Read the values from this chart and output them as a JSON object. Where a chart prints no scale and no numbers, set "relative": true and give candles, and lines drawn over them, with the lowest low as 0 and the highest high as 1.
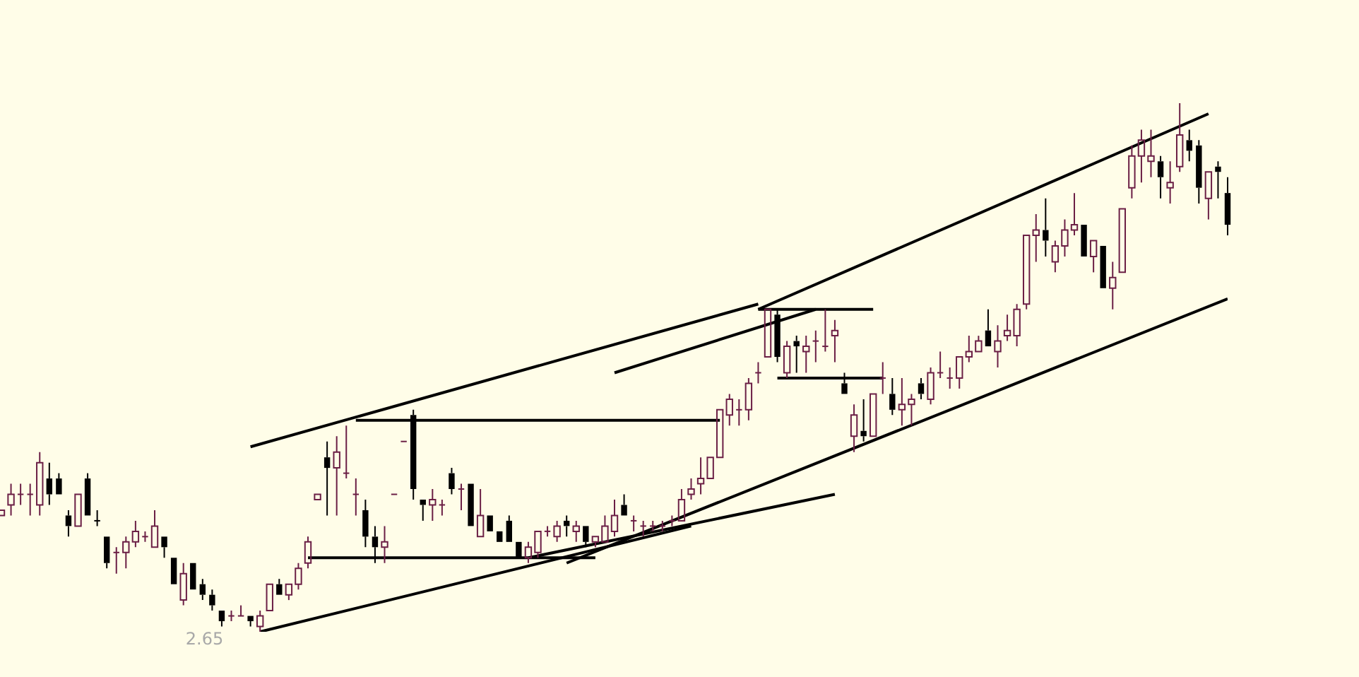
{
  "chart_data": {
    "type": "candlestick",
    "relative": true,
    "categories": [
      null,
      null,
      null,
      null,
      null,
      null,
      null,
      null,
      null,
      null,
      null,
      null,
      null,
      null,
      null,
      null,
      null,
      null,
      null,
      null,
      null,
      null,
      null,
      null,
      null,
      null,
      null,
      null,
      null,
      null,
      null,
      null,
      null,
      null,
      null,
      null,
      null,
      null,
      null,
      null,
      null,
      null,
      null,
      null,
      null,
      null,
      null,
      null,
      null,
      null,
      null,
      null,
      null,
      null,
      null,
      null,
      null,
      null,
      null,
      null,
      null,
      null,
      null,
      null,
      null,
      null,
      null,
      null,
      null,
      null,
      null,
      null,
      null,
      null,
      null,
      null,
      null,
      null,
      null,
      null,
      null,
      null,
      null,
      null,
      null,
      null,
      null,
      null,
      null,
      null,
      null,
      null,
      null,
      null,
      null,
      null,
      null,
      null,
      null,
      null,
      null,
      null,
      null,
      null,
      null,
      null,
      null,
      null,
      null,
      null,
      null,
      null,
      null,
      null,
      null,
      null,
      null,
      null,
      null,
      null,
      null,
      null,
      null,
      null,
      null,
      null,
      null,
      null,
      null
    ],
    "annotations": [
      "2.65"
    ],
    "series": [
      {
        "type": "candlestick",
        "colors": [
          "#6b1f45",
          "#6b1f45",
          "#6b1f45",
          "#6b1f45",
          "#6b1f45",
          "#000000",
          "#000000",
          "#000000",
          "#6b1f45",
          "#000000",
          "#000000",
          "#000000",
          "#6b1f45",
          "#6b1f45",
          "#6b1f45",
          "#6b1f45",
          "#6b1f45",
          "#000000",
          "#000000",
          "#6b1f45",
          "#000000",
          "#000000",
          "#000000",
          "#000000",
          "#6b1f45",
          "#6b1f45",
          "#000000",
          "#6b1f45",
          "#6b1f45",
          "#000000",
          "#6b1f45",
          "#6b1f45",
          "#6b1f45",
          "#6b1f45",
          "#000000",
          "#6b1f45",
          "#6b1f45",
          "#6b1f45",
          "#000000",
          "#000000",
          "#6b1f45",
          "#6b1f45",
          "#6b1f45",
          "#000000",
          "#000000",
          "#6b1f45",
          "#6b1f45",
          "#000000",
          "#6b1f45",
          "#000000",
          "#6b1f45",
          "#000000",
          "#000000",
          "#000000",
          "#000000",
          "#6b1f45",
          "#6b1f45",
          "#6b1f45",
          "#6b1f45",
          "#000000",
          "#6b1f45",
          "#000000",
          "#6b1f45",
          "#6b1f45",
          "#6b1f45",
          "#000000",
          "#6b1f45",
          "#6b1f45",
          "#6b1f45",
          "#6b1f45",
          "#6b1f45",
          "#6b1f45",
          "#6b1f45",
          "#6b1f45",
          "#6b1f45",
          "#6b1f45",
          "#6b1f45",
          "#6b1f45",
          "#6b1f45",
          "#6b1f45",
          "#6b1f45",
          "#000000",
          "#6b1f45",
          "#000000",
          "#6b1f45",
          "#6b1f45",
          "#6b1f45",
          "#6b1f45",
          "#000000",
          "#6b1f45",
          "#000000",
          "#6b1f45",
          "#6b1f45",
          "#000000",
          "#6b1f45",
          "#6b1f45",
          "#000000",
          "#6b1f45",
          "#6b1f45",
          "#6b1f45",
          "#6b1f45",
          "#6b1f45",
          "#6b1f45",
          "#000000",
          "#6b1f45",
          "#6b1f45",
          "#6b1f45",
          "#6b1f45",
          "#6b1f45",
          "#000000",
          "#6b1f45",
          "#6b1f45",
          "#6b1f45",
          "#000000",
          "#6b1f45",
          "#000000",
          "#6b1f45",
          "#6b1f45",
          "#6b1f45",
          "#6b1f45",
          "#6b1f45",
          "#000000",
          "#6b1f45",
          "#6b1f45",
          "#000000",
          "#000000",
          "#6b1f45",
          "#000000",
          "#000000"
        ],
        "ohlc": [
          [
            0.22,
            0.23,
            0.22,
            0.23
          ],
          [
            0.24,
            0.28,
            0.22,
            0.26
          ],
          [
            0.26,
            0.28,
            0.24,
            0.26
          ],
          [
            0.26,
            0.28,
            0.22,
            0.26
          ],
          [
            0.24,
            0.34,
            0.22,
            0.32
          ],
          [
            0.29,
            0.32,
            0.24,
            0.26
          ],
          [
            0.29,
            0.3,
            0.26,
            0.26
          ],
          [
            0.22,
            0.23,
            0.18,
            0.2
          ],
          [
            0.2,
            0.26,
            0.2,
            0.26
          ],
          [
            0.29,
            0.3,
            0.22,
            0.22
          ],
          [
            0.21,
            0.23,
            0.2,
            0.21
          ],
          [
            0.18,
            0.18,
            0.12,
            0.13
          ],
          [
            0.15,
            0.16,
            0.11,
            0.15
          ],
          [
            0.15,
            0.18,
            0.12,
            0.17
          ],
          [
            0.17,
            0.21,
            0.16,
            0.19
          ],
          [
            0.18,
            0.19,
            0.17,
            0.18
          ],
          [
            0.16,
            0.23,
            0.16,
            0.2
          ],
          [
            0.18,
            0.18,
            0.14,
            0.16
          ],
          [
            0.14,
            0.14,
            0.09,
            0.09
          ],
          [
            0.06,
            0.13,
            0.05,
            0.11
          ],
          [
            0.13,
            0.13,
            0.08,
            0.08
          ],
          [
            0.09,
            0.1,
            0.06,
            0.07
          ],
          [
            0.07,
            0.08,
            0.04,
            0.05
          ],
          [
            0.04,
            0.04,
            0.01,
            0.02
          ],
          [
            0.03,
            0.04,
            0.02,
            0.03
          ],
          [
            0.03,
            0.05,
            0.03,
            0.03
          ],
          [
            0.03,
            0.03,
            0.01,
            0.02
          ],
          [
            0.01,
            0.04,
            0,
            0.03
          ],
          [
            0.04,
            0.09,
            0.04,
            0.09
          ],
          [
            0.09,
            0.1,
            0.07,
            0.07
          ],
          [
            0.07,
            0.09,
            0.06,
            0.09
          ],
          [
            0.09,
            0.13,
            0.08,
            0.12
          ],
          [
            0.13,
            0.18,
            0.12,
            0.17
          ],
          [
            0.25,
            0.26,
            0.25,
            0.26
          ],
          [
            0.33,
            0.36,
            0.22,
            0.31
          ],
          [
            0.31,
            0.37,
            0.22,
            0.34
          ],
          [
            0.3,
            0.39,
            0.29,
            0.3
          ],
          [
            0.26,
            0.29,
            0.22,
            0.26
          ],
          [
            0.23,
            0.25,
            0.16,
            0.18
          ],
          [
            0.18,
            0.2,
            0.13,
            0.16
          ],
          [
            0.16,
            0.2,
            0.13,
            0.17
          ],
          [
            0.26,
            0.26,
            0.26,
            0.26
          ],
          [
            0.36,
            0.36,
            0.36,
            0.36
          ],
          [
            0.41,
            0.42,
            0.25,
            0.27
          ],
          [
            0.25,
            0.25,
            0.21,
            0.24
          ],
          [
            0.24,
            0.27,
            0.21,
            0.25
          ],
          [
            0.24,
            0.25,
            0.22,
            0.24
          ],
          [
            0.3,
            0.31,
            0.26,
            0.27
          ],
          [
            0.27,
            0.28,
            0.23,
            0.27
          ],
          [
            0.28,
            0.28,
            0.2,
            0.2
          ],
          [
            0.18,
            0.27,
            0.18,
            0.22
          ],
          [
            0.22,
            0.22,
            0.19,
            0.19
          ],
          [
            0.19,
            0.19,
            0.17,
            0.17
          ],
          [
            0.21,
            0.22,
            0.17,
            0.17
          ],
          [
            0.17,
            0.17,
            0.14,
            0.14
          ],
          [
            0.14,
            0.17,
            0.13,
            0.16
          ],
          [
            0.15,
            0.19,
            0.14,
            0.19
          ],
          [
            0.19,
            0.2,
            0.18,
            0.19
          ],
          [
            0.18,
            0.21,
            0.17,
            0.2
          ],
          [
            0.21,
            0.22,
            0.18,
            0.2
          ],
          [
            0.19,
            0.21,
            0.17,
            0.2
          ],
          [
            0.2,
            0.2,
            0.16,
            0.17
          ],
          [
            0.17,
            0.18,
            0.16,
            0.18
          ],
          [
            0.17,
            0.22,
            0.17,
            0.2
          ],
          [
            0.19,
            0.25,
            0.18,
            0.22
          ],
          [
            0.24,
            0.26,
            0.22,
            0.22
          ],
          [
            0.21,
            0.22,
            0.19,
            0.21
          ],
          [
            0.2,
            0.21,
            0.18,
            0.2
          ],
          [
            0.2,
            0.21,
            0.19,
            0.2
          ],
          [
            0.2,
            0.21,
            0.19,
            0.2
          ],
          [
            0.21,
            0.22,
            0.2,
            0.21
          ],
          [
            0.21,
            0.27,
            0.21,
            0.25
          ],
          [
            0.26,
            0.29,
            0.25,
            0.27
          ],
          [
            0.28,
            0.33,
            0.26,
            0.29
          ],
          [
            0.29,
            0.33,
            0.29,
            0.33
          ],
          [
            0.33,
            0.42,
            0.33,
            0.42
          ],
          [
            0.41,
            0.45,
            0.39,
            0.44
          ],
          [
            0.42,
            0.44,
            0.39,
            0.42
          ],
          [
            0.42,
            0.48,
            0.4,
            0.47
          ],
          [
            0.49,
            0.51,
            0.47,
            0.49
          ],
          [
            0.52,
            0.61,
            0.52,
            0.61
          ],
          [
            0.6,
            0.61,
            0.51,
            0.52
          ],
          [
            0.49,
            0.55,
            0.48,
            0.54
          ],
          [
            0.55,
            0.56,
            0.49,
            0.54
          ],
          [
            0.53,
            0.56,
            0.49,
            0.54
          ],
          [
            0.55,
            0.57,
            0.51,
            0.55
          ],
          [
            0.54,
            0.61,
            0.53,
            0.54
          ],
          [
            0.56,
            0.59,
            0.51,
            0.57
          ],
          [
            0.47,
            0.49,
            0.45,
            0.45
          ],
          [
            0.37,
            0.43,
            0.34,
            0.41
          ],
          [
            0.38,
            0.44,
            0.36,
            0.37
          ],
          [
            0.37,
            0.45,
            0.37,
            0.45
          ],
          [
            0.48,
            0.51,
            0.45,
            0.48
          ],
          [
            0.45,
            0.48,
            0.41,
            0.42
          ],
          [
            0.42,
            0.48,
            0.39,
            0.43
          ],
          [
            0.43,
            0.45,
            0.39,
            0.44
          ],
          [
            0.47,
            0.48,
            0.44,
            0.45
          ],
          [
            0.44,
            0.5,
            0.43,
            0.49
          ],
          [
            0.49,
            0.53,
            0.48,
            0.49
          ],
          [
            0.48,
            0.5,
            0.46,
            0.48
          ],
          [
            0.48,
            0.52,
            0.46,
            0.52
          ],
          [
            0.52,
            0.56,
            0.51,
            0.53
          ],
          [
            0.53,
            0.56,
            0.53,
            0.55
          ],
          [
            0.57,
            0.61,
            0.54,
            0.54
          ],
          [
            0.53,
            0.58,
            0.5,
            0.55
          ],
          [
            0.56,
            0.6,
            0.55,
            0.57
          ],
          [
            0.56,
            0.62,
            0.54,
            0.61
          ],
          [
            0.62,
            0.75,
            0.61,
            0.75
          ],
          [
            0.75,
            0.79,
            0.7,
            0.76
          ],
          [
            0.76,
            0.82,
            0.71,
            0.74
          ],
          [
            0.7,
            0.74,
            0.68,
            0.73
          ],
          [
            0.73,
            0.78,
            0.71,
            0.76
          ],
          [
            0.76,
            0.83,
            0.75,
            0.77
          ],
          [
            0.77,
            0.77,
            0.71,
            0.71
          ],
          [
            0.71,
            0.74,
            0.68,
            0.74
          ],
          [
            0.73,
            0.73,
            0.65,
            0.65
          ],
          [
            0.65,
            0.7,
            0.61,
            0.67
          ],
          [
            0.68,
            0.8,
            0.68,
            0.8
          ],
          [
            0.84,
            0.92,
            0.82,
            0.9
          ],
          [
            0.9,
            0.95,
            0.85,
            0.93
          ],
          [
            0.89,
            0.95,
            0.86,
            0.9
          ],
          [
            0.89,
            0.9,
            0.82,
            0.86
          ],
          [
            0.84,
            0.89,
            0.81,
            0.85
          ],
          [
            0.88,
            1,
            0.87,
            0.94
          ],
          [
            0.93,
            0.95,
            0.89,
            0.91
          ],
          [
            0.92,
            0.93,
            0.81,
            0.84
          ],
          [
            0.82,
            0.87,
            0.78,
            0.87
          ],
          [
            0.88,
            0.89,
            0.82,
            0.87
          ],
          [
            0.83,
            0.86,
            0.75,
            0.77
          ]
        ]
      },
      {
        "type": "line",
        "color": "#000000",
        "values": [
          null,
          null,
          null,
          null,
          null,
          null,
          null,
          null,
          null,
          null,
          null,
          null,
          null,
          null,
          null,
          null,
          null,
          null,
          null,
          null,
          null,
          null,
          null,
          null,
          null,
          null,
          0.35,
          null,
          null,
          null,
          null,
          null,
          null,
          null,
          null,
          null,
          null,
          null,
          null,
          null,
          null,
          null,
          null,
          null,
          null,
          null,
          null,
          null,
          null,
          null,
          null,
          null,
          null,
          null,
          null,
          null,
          null,
          null,
          null,
          null,
          null,
          null,
          null,
          null,
          null,
          null,
          null,
          null,
          null,
          null,
          null,
          null,
          null,
          null,
          null,
          null,
          null,
          null,
          null,
          0.62,
          null,
          null,
          null,
          null,
          null,
          null,
          null,
          null,
          null,
          null,
          null,
          null,
          null,
          null,
          null,
          null,
          null,
          null,
          null,
          null,
          null,
          null,
          null,
          null,
          null,
          null,
          null,
          null,
          null,
          null,
          null,
          null,
          null,
          null,
          null,
          null,
          null,
          null,
          null,
          null,
          null,
          null,
          null,
          null,
          null,
          null,
          null,
          null,
          null
        ]
      },
      {
        "type": "line",
        "color": "#000000",
        "values": [
          null,
          null,
          null,
          null,
          null,
          null,
          null,
          null,
          null,
          null,
          null,
          null,
          null,
          null,
          null,
          null,
          null,
          null,
          null,
          null,
          null,
          null,
          null,
          null,
          null,
          null,
          null,
          null,
          null,
          null,
          null,
          null,
          null,
          null,
          null,
          null,
          null,
          null,
          null,
          null,
          null,
          null,
          null,
          null,
          null,
          null,
          null,
          null,
          null,
          null,
          null,
          null,
          null,
          null,
          null,
          null,
          null,
          null,
          null,
          null,
          null,
          null,
          null,
          null,
          0.49,
          null,
          null,
          null,
          null,
          null,
          null,
          null,
          null,
          null,
          null,
          null,
          null,
          null,
          null,
          null,
          null,
          null,
          null,
          null,
          null,
          0.61,
          null,
          null,
          null,
          null,
          null,
          null,
          null,
          null,
          null,
          null,
          null,
          null,
          null,
          null,
          null,
          null,
          null,
          null,
          null,
          null,
          null,
          null,
          null,
          null,
          null,
          null,
          null,
          null,
          null,
          null,
          null,
          null,
          null,
          null,
          null,
          null,
          null,
          null,
          null,
          null,
          null,
          null,
          null
        ]
      },
      {
        "type": "line",
        "color": "#000000",
        "values": [
          null,
          null,
          null,
          null,
          null,
          null,
          null,
          null,
          null,
          null,
          null,
          null,
          null,
          null,
          null,
          null,
          null,
          null,
          null,
          null,
          null,
          null,
          null,
          null,
          null,
          null,
          null,
          null,
          null,
          null,
          null,
          null,
          null,
          null,
          null,
          null,
          null,
          null,
          null,
          null,
          null,
          null,
          null,
          null,
          null,
          null,
          null,
          null,
          null,
          null,
          null,
          null,
          null,
          null,
          null,
          null,
          null,
          null,
          null,
          null,
          null,
          null,
          null,
          null,
          null,
          null,
          null,
          null,
          null,
          null,
          null,
          null,
          null,
          null,
          null,
          null,
          null,
          null,
          null,
          0.61,
          null,
          null,
          null,
          null,
          null,
          null,
          null,
          null,
          null,
          null,
          null,
          null,
          null,
          null,
          null,
          null,
          null,
          null,
          null,
          null,
          null,
          null,
          null,
          null,
          null,
          null,
          null,
          null,
          null,
          null,
          null,
          null,
          null,
          null,
          null,
          null,
          null,
          null,
          null,
          null,
          null,
          null,
          null,
          null,
          null,
          null,
          0.98,
          null,
          null
        ]
      },
      {
        "type": "line",
        "color": "#000000",
        "values": [
          null,
          null,
          null,
          null,
          null,
          null,
          null,
          null,
          null,
          null,
          null,
          null,
          null,
          null,
          null,
          null,
          null,
          null,
          null,
          null,
          null,
          null,
          null,
          null,
          null,
          null,
          null,
          null,
          null,
          null,
          null,
          null,
          null,
          null,
          null,
          null,
          null,
          null,
          null,
          null,
          null,
          null,
          null,
          null,
          null,
          null,
          null,
          null,
          null,
          null,
          null,
          null,
          null,
          null,
          null,
          null,
          null,
          null,
          null,
          0.13,
          null,
          null,
          null,
          null,
          null,
          null,
          null,
          null,
          null,
          null,
          null,
          null,
          null,
          null,
          null,
          null,
          null,
          null,
          null,
          null,
          null,
          null,
          null,
          null,
          null,
          null,
          null,
          null,
          null,
          null,
          null,
          null,
          null,
          null,
          null,
          null,
          null,
          null,
          null,
          null,
          null,
          null,
          null,
          null,
          null,
          null,
          null,
          null,
          null,
          null,
          null,
          null,
          null,
          null,
          null,
          null,
          null,
          null,
          null,
          null,
          null,
          null,
          null,
          null,
          null,
          null,
          null,
          null,
          0.63
        ]
      },
      {
        "type": "line",
        "color": "#000000",
        "values": [
          null,
          null,
          null,
          null,
          null,
          null,
          null,
          null,
          null,
          null,
          null,
          null,
          null,
          null,
          null,
          null,
          null,
          null,
          null,
          null,
          null,
          null,
          null,
          null,
          null,
          null,
          null,
          0,
          null,
          null,
          null,
          null,
          null,
          null,
          null,
          null,
          null,
          null,
          null,
          null,
          null,
          null,
          null,
          null,
          null,
          null,
          null,
          null,
          null,
          null,
          null,
          null,
          null,
          null,
          null,
          null,
          null,
          null,
          null,
          null,
          null,
          null,
          null,
          null,
          null,
          null,
          null,
          null,
          null,
          null,
          null,
          null,
          0.2,
          null,
          null,
          null,
          null,
          null,
          null,
          null,
          null,
          null,
          null,
          null,
          null,
          null,
          null,
          null,
          null,
          null,
          null,
          null,
          null,
          null,
          null,
          null,
          null,
          null,
          null,
          null,
          null,
          null,
          null,
          null,
          null,
          null,
          null,
          null,
          null,
          null,
          null,
          null,
          null,
          null,
          null,
          null,
          null,
          null,
          null,
          null,
          null,
          null,
          null,
          null,
          null,
          null,
          null,
          null,
          null
        ]
      },
      {
        "type": "line",
        "color": "#000000",
        "values": [
          null,
          null,
          null,
          null,
          null,
          null,
          null,
          null,
          null,
          null,
          null,
          null,
          null,
          null,
          null,
          null,
          null,
          null,
          null,
          null,
          null,
          null,
          null,
          null,
          null,
          null,
          null,
          null,
          null,
          null,
          null,
          null,
          null,
          null,
          null,
          null,
          null,
          null,
          null,
          null,
          null,
          null,
          null,
          null,
          null,
          null,
          null,
          null,
          null,
          null,
          null,
          null,
          null,
          null,
          null,
          0.14,
          null,
          null,
          null,
          null,
          null,
          null,
          null,
          null,
          null,
          null,
          null,
          null,
          null,
          null,
          null,
          null,
          null,
          null,
          null,
          null,
          null,
          null,
          null,
          null,
          null,
          null,
          null,
          null,
          null,
          null,
          null,
          0.26,
          null,
          null,
          null,
          null,
          null,
          null,
          null,
          null,
          null,
          null,
          null,
          null,
          null,
          null,
          null,
          null,
          null,
          null,
          null,
          null,
          null,
          null,
          null,
          null,
          null,
          null,
          null,
          null,
          null,
          null,
          null,
          null,
          null,
          null,
          null,
          null,
          null,
          null,
          null,
          null,
          null
        ]
      },
      {
        "type": "line",
        "color": "#000000",
        "values": [
          null,
          null,
          null,
          null,
          null,
          null,
          null,
          null,
          null,
          null,
          null,
          null,
          null,
          null,
          null,
          null,
          null,
          null,
          null,
          null,
          null,
          null,
          null,
          null,
          null,
          null,
          null,
          null,
          null,
          null,
          null,
          null,
          null,
          null,
          null,
          null,
          null,
          0.4,
          null,
          null,
          null,
          null,
          null,
          null,
          null,
          null,
          null,
          null,
          null,
          null,
          null,
          null,
          null,
          null,
          null,
          null,
          null,
          null,
          null,
          null,
          null,
          null,
          null,
          null,
          null,
          null,
          null,
          null,
          null,
          null,
          null,
          null,
          null,
          null,
          null,
          0.4,
          null,
          null,
          null,
          null,
          null,
          null,
          null,
          null,
          null,
          null,
          null,
          null,
          null,
          null,
          null,
          null,
          null,
          null,
          null,
          null,
          null,
          null,
          null,
          null,
          null,
          null,
          null,
          null,
          null,
          null,
          null,
          null,
          null,
          null,
          null,
          null,
          null,
          null,
          null,
          null,
          null,
          null,
          null,
          null,
          null,
          null,
          null,
          null,
          null,
          null,
          null,
          null,
          null
        ]
      },
      {
        "type": "line",
        "color": "#000000",
        "values": [
          null,
          null,
          null,
          null,
          null,
          null,
          null,
          null,
          null,
          null,
          null,
          null,
          null,
          null,
          null,
          null,
          null,
          null,
          null,
          null,
          null,
          null,
          null,
          null,
          null,
          null,
          null,
          null,
          null,
          null,
          null,
          null,
          0.14,
          null,
          null,
          null,
          null,
          null,
          null,
          null,
          null,
          null,
          null,
          null,
          null,
          null,
          null,
          null,
          null,
          null,
          null,
          null,
          null,
          null,
          null,
          null,
          null,
          null,
          null,
          null,
          null,
          null,
          0.14,
          null,
          null,
          null,
          null,
          null,
          null,
          null,
          null,
          null,
          null,
          null,
          null,
          null,
          null,
          null,
          null,
          null,
          null,
          null,
          null,
          null,
          null,
          null,
          null,
          null,
          null,
          null,
          null,
          null,
          null,
          null,
          null,
          null,
          null,
          null,
          null,
          null,
          null,
          null,
          null,
          null,
          null,
          null,
          null,
          null,
          null,
          null,
          null,
          null,
          null,
          null,
          null,
          null,
          null,
          null,
          null,
          null,
          null,
          null,
          null,
          null,
          null,
          null,
          null,
          null,
          null
        ]
      },
      {
        "type": "line",
        "color": "#000000",
        "values": [
          null,
          null,
          null,
          null,
          null,
          null,
          null,
          null,
          null,
          null,
          null,
          null,
          null,
          null,
          null,
          null,
          null,
          null,
          null,
          null,
          null,
          null,
          null,
          null,
          null,
          null,
          null,
          null,
          null,
          null,
          null,
          null,
          null,
          null,
          null,
          null,
          null,
          null,
          null,
          null,
          null,
          null,
          null,
          null,
          null,
          null,
          null,
          null,
          null,
          null,
          null,
          null,
          null,
          null,
          null,
          null,
          null,
          null,
          null,
          null,
          null,
          null,
          null,
          null,
          null,
          null,
          null,
          null,
          null,
          null,
          null,
          null,
          null,
          null,
          null,
          null,
          null,
          null,
          null,
          0.61,
          null,
          null,
          null,
          null,
          null,
          null,
          null,
          null,
          null,
          null,
          null,
          0.61,
          null,
          null,
          null,
          null,
          null,
          null,
          null,
          null,
          null,
          null,
          null,
          null,
          null,
          null,
          null,
          null,
          null,
          null,
          null,
          null,
          null,
          null,
          null,
          null,
          null,
          null,
          null,
          null,
          null,
          null,
          null,
          null,
          null,
          null,
          null,
          null,
          null
        ]
      },
      {
        "type": "line",
        "color": "#000000",
        "values": [
          null,
          null,
          null,
          null,
          null,
          null,
          null,
          null,
          null,
          null,
          null,
          null,
          null,
          null,
          null,
          null,
          null,
          null,
          null,
          null,
          null,
          null,
          null,
          null,
          null,
          null,
          null,
          null,
          null,
          null,
          null,
          null,
          null,
          null,
          null,
          null,
          null,
          null,
          null,
          null,
          null,
          null,
          null,
          null,
          null,
          null,
          null,
          null,
          null,
          null,
          null,
          null,
          null,
          null,
          null,
          null,
          null,
          null,
          null,
          null,
          null,
          null,
          null,
          null,
          null,
          null,
          null,
          null,
          null,
          null,
          null,
          null,
          null,
          null,
          null,
          null,
          null,
          null,
          null,
          null,
          null,
          0.48,
          null,
          null,
          null,
          null,
          null,
          null,
          null,
          null,
          null,
          null,
          0.48,
          null,
          null,
          null,
          null,
          null,
          null,
          null,
          null,
          null,
          null,
          null,
          null,
          null,
          null,
          null,
          null,
          null,
          null,
          null,
          null,
          null,
          null,
          null,
          null,
          null,
          null,
          null,
          null,
          null,
          null,
          null,
          null,
          null,
          null,
          null,
          null
        ]
      }
    ]
  }
}
